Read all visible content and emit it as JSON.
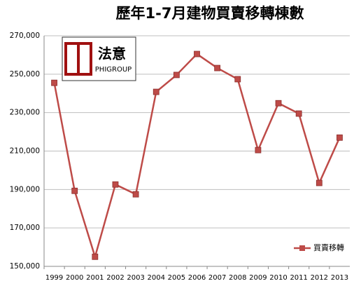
{
  "logo": {
    "name": "法意",
    "sub": "PHIGROUP"
  },
  "chart_data": {
    "type": "line",
    "title": "歷年1-7月建物買賣移轉棟數",
    "categories": [
      "1999",
      "2000",
      "2001",
      "2002",
      "2003",
      "2004",
      "2005",
      "2006",
      "2007",
      "2008",
      "2009",
      "2010",
      "2011",
      "2012",
      "2013"
    ],
    "series": [
      {
        "name": "買賣移轉",
        "color": "#be4b48",
        "values": [
          245500,
          189300,
          155000,
          192600,
          187500,
          240800,
          249600,
          260500,
          253200,
          247400,
          210500,
          234900,
          229500,
          193400,
          217000
        ]
      }
    ],
    "ylim": [
      150000,
      270000
    ],
    "yticks": [
      {
        "value": 150000,
        "label": "150,000"
      },
      {
        "value": 170000,
        "label": "170,000"
      },
      {
        "value": 190000,
        "label": "190,000"
      },
      {
        "value": 210000,
        "label": "210,000"
      },
      {
        "value": 230000,
        "label": "230,000"
      },
      {
        "value": 250000,
        "label": "250,000"
      },
      {
        "value": 270000,
        "label": "270,000"
      }
    ],
    "grid": true,
    "legend": "bottom-right"
  }
}
